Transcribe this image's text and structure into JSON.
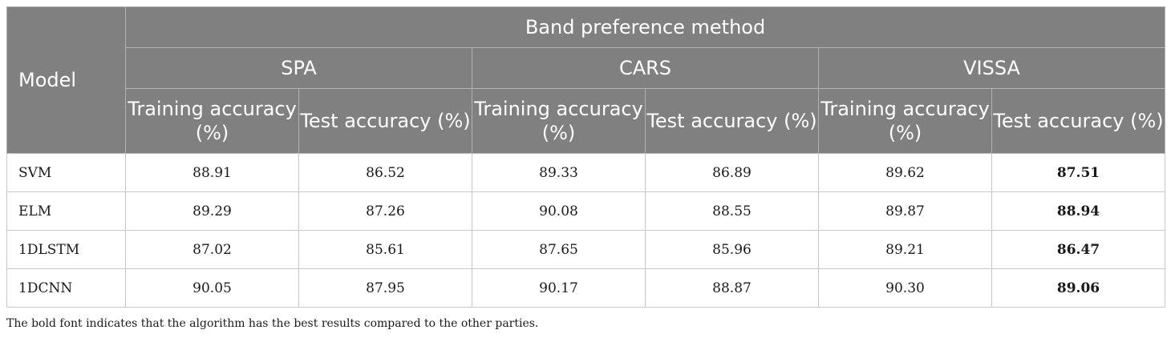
{
  "table": {
    "model_header": "Model",
    "group_header": "Band preference method",
    "methods": [
      "SPA",
      "CARS",
      "VISSA"
    ],
    "metric_headers": [
      "Training accuracy (%)",
      "Test accuracy (%)",
      "Training accuracy (%)",
      "Test accuracy (%)",
      "Training accuracy (%)",
      "Test accuracy (%)"
    ],
    "rows": [
      {
        "model": "SVM",
        "values": [
          "88.91",
          "86.52",
          "89.33",
          "86.89",
          "89.62",
          "87.51"
        ]
      },
      {
        "model": "ELM",
        "values": [
          "89.29",
          "87.26",
          "90.08",
          "88.55",
          "89.87",
          "88.94"
        ]
      },
      {
        "model": "1DLSTM",
        "values": [
          "87.02",
          "85.61",
          "87.65",
          "85.96",
          "89.21",
          "86.47"
        ]
      },
      {
        "model": "1DCNN",
        "values": [
          "90.05",
          "87.95",
          "90.17",
          "88.87",
          "90.30",
          "89.06"
        ]
      }
    ],
    "bold_column_index": 5
  },
  "footnote": "The bold font indicates that the algorithm has the best results compared to the other parties."
}
